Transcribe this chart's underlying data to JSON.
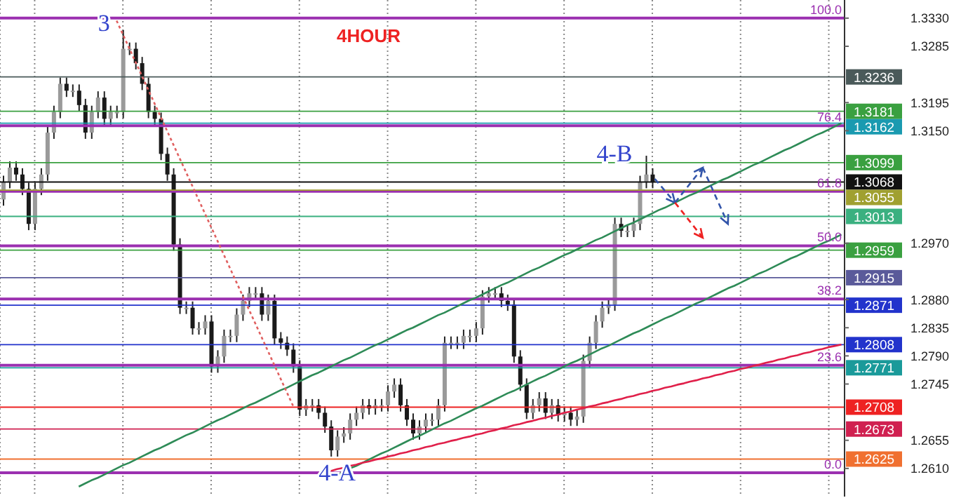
{
  "chart_data": {
    "type": "candlestick",
    "title": "4HOUR",
    "categories": [
      null,
      null,
      null,
      null,
      null,
      null,
      null,
      null,
      null,
      null,
      null,
      null,
      null,
      null,
      null,
      null,
      null,
      null,
      null,
      null,
      null,
      null,
      null,
      null,
      null,
      null,
      null,
      null,
      null,
      null,
      null,
      null,
      null,
      null,
      null,
      null,
      null,
      null,
      null,
      null,
      null,
      null,
      null,
      null,
      null,
      null,
      null,
      null,
      null,
      null,
      null,
      null,
      null,
      null,
      null,
      null,
      null,
      null,
      null,
      null,
      null,
      null,
      null,
      null,
      null,
      null,
      null,
      null,
      null,
      null,
      null,
      null,
      null,
      null,
      null,
      null,
      null,
      null,
      null,
      null,
      null,
      null,
      null,
      null,
      null,
      null,
      null,
      null,
      null,
      null,
      null,
      null,
      null,
      null,
      null,
      null,
      null,
      null,
      null,
      null,
      null,
      null,
      null,
      null,
      null,
      null,
      null,
      null,
      null,
      null,
      null,
      null,
      null,
      null,
      null,
      null,
      null,
      null,
      null,
      null,
      null,
      null,
      null,
      null,
      null,
      null,
      null,
      null,
      null,
      null,
      null,
      null,
      null,
      null
    ],
    "ohlc": [
      [
        1.304,
        1.3078,
        1.303,
        1.3068
      ],
      [
        1.3068,
        1.3101,
        1.3058,
        1.3091
      ],
      [
        1.3091,
        1.3101,
        1.307,
        1.308
      ],
      [
        1.308,
        1.309,
        1.3047,
        1.3057
      ],
      [
        1.3057,
        1.3067,
        1.2991,
        1.3001
      ],
      [
        1.3001,
        1.3067,
        1.2991,
        1.3057
      ],
      [
        1.3057,
        1.309,
        1.3047,
        1.308
      ],
      [
        1.308,
        1.3157,
        1.307,
        1.3147
      ],
      [
        1.3147,
        1.319,
        1.3137,
        1.318
      ],
      [
        1.318,
        1.3235,
        1.317,
        1.3225
      ],
      [
        1.3225,
        1.3235,
        1.3204,
        1.3214
      ],
      [
        1.3214,
        1.3224,
        1.3204,
        1.3214
      ],
      [
        1.3214,
        1.3224,
        1.3181,
        1.3191
      ],
      [
        1.3191,
        1.3201,
        1.3137,
        1.3147
      ],
      [
        1.3147,
        1.319,
        1.3137,
        1.318
      ],
      [
        1.318,
        1.3213,
        1.317,
        1.3203
      ],
      [
        1.3203,
        1.3213,
        1.3159,
        1.3169
      ],
      [
        1.3169,
        1.319,
        1.3159,
        1.318
      ],
      [
        1.318,
        1.319,
        1.317,
        1.318
      ],
      [
        1.318,
        1.3311,
        1.317,
        1.3281
      ],
      [
        1.3281,
        1.3291,
        1.3271,
        1.3281
      ],
      [
        1.3281,
        1.3291,
        1.3248,
        1.3258
      ],
      [
        1.3258,
        1.3268,
        1.3215,
        1.3225
      ],
      [
        1.3225,
        1.3235,
        1.317,
        1.318
      ],
      [
        1.318,
        1.319,
        1.3159,
        1.3169
      ],
      [
        1.3169,
        1.3179,
        1.3103,
        1.3113
      ],
      [
        1.3113,
        1.3123,
        1.307,
        1.308
      ],
      [
        1.308,
        1.309,
        1.2958,
        1.2968
      ],
      [
        1.2968,
        1.2978,
        1.2857,
        1.2867
      ],
      [
        1.2867,
        1.2877,
        1.2857,
        1.2867
      ],
      [
        1.2867,
        1.2877,
        1.2824,
        1.2834
      ],
      [
        1.2834,
        1.2844,
        1.2824,
        1.2834
      ],
      [
        1.2834,
        1.2855,
        1.2824,
        1.2845
      ],
      [
        1.2845,
        1.2855,
        1.2763,
        1.2773
      ],
      [
        1.2773,
        1.2799,
        1.2763,
        1.2789
      ],
      [
        1.2789,
        1.2832,
        1.2779,
        1.2822
      ],
      [
        1.2822,
        1.2832,
        1.2812,
        1.2822
      ],
      [
        1.2822,
        1.2866,
        1.2812,
        1.2856
      ],
      [
        1.2856,
        1.2888,
        1.2846,
        1.2878
      ],
      [
        1.2878,
        1.29,
        1.2868,
        1.289
      ],
      [
        1.289,
        1.29,
        1.288,
        1.289
      ],
      [
        1.289,
        1.29,
        1.2846,
        1.2856
      ],
      [
        1.2856,
        1.2888,
        1.2846,
        1.2878
      ],
      [
        1.2878,
        1.2888,
        1.2808,
        1.2818
      ],
      [
        1.2818,
        1.2828,
        1.2801,
        1.2811
      ],
      [
        1.2811,
        1.2821,
        1.279,
        1.28
      ],
      [
        1.28,
        1.281,
        1.2763,
        1.2773
      ],
      [
        1.2773,
        1.2783,
        1.2694,
        1.2704
      ],
      [
        1.2704,
        1.2721,
        1.2694,
        1.2711
      ],
      [
        1.2711,
        1.2721,
        1.2701,
        1.2711
      ],
      [
        1.2711,
        1.2721,
        1.2689,
        1.2699
      ],
      [
        1.2699,
        1.2709,
        1.2667,
        1.2677
      ],
      [
        1.2677,
        1.2687,
        1.2629,
        1.2639
      ],
      [
        1.2639,
        1.2671,
        1.2629,
        1.2661
      ],
      [
        1.2661,
        1.2676,
        1.2651,
        1.2666
      ],
      [
        1.2666,
        1.2698,
        1.2656,
        1.2688
      ],
      [
        1.2688,
        1.2709,
        1.2678,
        1.2699
      ],
      [
        1.2699,
        1.2721,
        1.2689,
        1.2711
      ],
      [
        1.2711,
        1.2721,
        1.2696,
        1.2706
      ],
      [
        1.2706,
        1.2721,
        1.2696,
        1.2711
      ],
      [
        1.2711,
        1.2721,
        1.2701,
        1.2711
      ],
      [
        1.2711,
        1.2743,
        1.2701,
        1.2733
      ],
      [
        1.2733,
        1.2754,
        1.2723,
        1.2744
      ],
      [
        1.2744,
        1.2754,
        1.2701,
        1.2711
      ],
      [
        1.2711,
        1.2721,
        1.2678,
        1.2688
      ],
      [
        1.2688,
        1.2698,
        1.2656,
        1.2666
      ],
      [
        1.2666,
        1.2687,
        1.2656,
        1.2677
      ],
      [
        1.2677,
        1.2698,
        1.2667,
        1.2688
      ],
      [
        1.2688,
        1.2698,
        1.2678,
        1.2688
      ],
      [
        1.2688,
        1.2721,
        1.2678,
        1.2711
      ],
      [
        1.2711,
        1.2821,
        1.2701,
        1.2811
      ],
      [
        1.2811,
        1.2821,
        1.2801,
        1.2811
      ],
      [
        1.2811,
        1.2821,
        1.2801,
        1.2811
      ],
      [
        1.2811,
        1.2832,
        1.2801,
        1.2822
      ],
      [
        1.2822,
        1.2832,
        1.2812,
        1.2822
      ],
      [
        1.2822,
        1.2844,
        1.2812,
        1.2834
      ],
      [
        1.2834,
        1.2895,
        1.2824,
        1.2885
      ],
      [
        1.2885,
        1.29,
        1.2875,
        1.289
      ],
      [
        1.289,
        1.29,
        1.288,
        1.289
      ],
      [
        1.289,
        1.29,
        1.2868,
        1.2878
      ],
      [
        1.2878,
        1.2888,
        1.2862,
        1.2872
      ],
      [
        1.2872,
        1.2882,
        1.2779,
        1.2789
      ],
      [
        1.2789,
        1.2799,
        1.2734,
        1.2744
      ],
      [
        1.2744,
        1.2754,
        1.2689,
        1.2699
      ],
      [
        1.2699,
        1.2721,
        1.2689,
        1.2711
      ],
      [
        1.2711,
        1.2732,
        1.2701,
        1.2722
      ],
      [
        1.2722,
        1.2732,
        1.2689,
        1.2699
      ],
      [
        1.2699,
        1.2721,
        1.2689,
        1.2711
      ],
      [
        1.2711,
        1.2721,
        1.2685,
        1.2695
      ],
      [
        1.2695,
        1.2709,
        1.2685,
        1.2699
      ],
      [
        1.2699,
        1.2709,
        1.2678,
        1.2688
      ],
      [
        1.2688,
        1.2703,
        1.2678,
        1.2693
      ],
      [
        1.2693,
        1.2792,
        1.2683,
        1.2782
      ],
      [
        1.2782,
        1.2821,
        1.2772,
        1.2811
      ],
      [
        1.2811,
        1.2855,
        1.2801,
        1.2845
      ],
      [
        1.2845,
        1.2877,
        1.2835,
        1.2867
      ],
      [
        1.2867,
        1.2882,
        1.2857,
        1.2872
      ],
      [
        1.2872,
        1.3011,
        1.2862,
        1.3001
      ],
      [
        1.3001,
        1.3011,
        1.298,
        1.299
      ],
      [
        1.299,
        1.3,
        1.298,
        1.299
      ],
      [
        1.299,
        1.3011,
        1.298,
        1.3001
      ],
      [
        1.3001,
        1.3078,
        1.2991,
        1.3068
      ],
      [
        1.3068,
        1.311,
        1.3058,
        1.308
      ],
      [
        1.308,
        1.309,
        1.3058,
        1.3068
      ],
      null,
      null,
      null,
      null,
      null,
      null,
      null,
      null,
      null,
      null,
      null,
      null,
      null,
      null,
      null,
      null,
      null,
      null,
      null,
      null,
      null,
      null,
      null,
      null,
      null,
      null,
      null,
      null,
      null,
      null
    ],
    "series": [
      {
        "type": "line",
        "color": "#2e8b57",
        "values": [
          null,
          null,
          null,
          null,
          null,
          null,
          null,
          null,
          null,
          null,
          null,
          null,
          1.2581,
          1.2586,
          1.2591,
          1.2595,
          1.26,
          1.2605,
          1.261,
          1.2615,
          1.2619,
          1.2624,
          1.2629,
          1.2634,
          1.2639,
          1.2643,
          1.2648,
          1.2653,
          1.2658,
          1.2663,
          1.2667,
          1.2672,
          1.2677,
          1.2682,
          1.2687,
          1.2691,
          1.2696,
          1.2701,
          1.2706,
          1.2711,
          1.2715,
          1.272,
          1.2725,
          1.273,
          1.2735,
          1.2739,
          1.2744,
          1.2749,
          1.2754,
          1.2759,
          1.2763,
          1.2768,
          1.2773,
          1.2778,
          1.2783,
          1.2787,
          1.2792,
          1.2797,
          1.2802,
          1.2807,
          1.2811,
          1.2816,
          1.2821,
          1.2826,
          1.2831,
          1.2835,
          1.284,
          1.2845,
          1.285,
          1.2855,
          1.2859,
          1.2864,
          1.2869,
          1.2874,
          1.2879,
          1.2883,
          1.2888,
          1.2893,
          1.2898,
          1.2903,
          1.2907,
          1.2912,
          1.2917,
          1.2922,
          1.2927,
          1.2931,
          1.2936,
          1.2941,
          1.2946,
          1.2951,
          1.2955,
          1.296,
          1.2965,
          1.297,
          1.2975,
          1.2979,
          1.2984,
          1.2989,
          1.2994,
          1.2999,
          1.3003,
          1.3008,
          1.3013,
          1.3018,
          1.3023,
          1.3027,
          1.3032,
          1.3037,
          1.3042,
          1.3047,
          1.3051,
          1.3056,
          1.3061,
          1.3066,
          1.3071,
          1.3075,
          1.308,
          1.3085,
          1.309,
          1.3095,
          1.3099,
          1.3104,
          1.3109,
          1.3114,
          1.3119,
          1.3123,
          1.3128,
          1.3133,
          1.3138,
          1.3143,
          1.3147,
          1.3152,
          1.3157,
          1.3162
        ]
      },
      {
        "type": "line",
        "color": "#2e8b57",
        "values": [
          null,
          null,
          null,
          null,
          null,
          null,
          null,
          null,
          null,
          null,
          null,
          null,
          null,
          null,
          null,
          null,
          null,
          null,
          null,
          null,
          null,
          null,
          null,
          null,
          null,
          null,
          null,
          null,
          null,
          null,
          null,
          null,
          null,
          null,
          null,
          null,
          null,
          null,
          null,
          null,
          null,
          null,
          null,
          null,
          null,
          null,
          null,
          null,
          null,
          null,
          null,
          null,
          null,
          1.26,
          1.2605,
          1.261,
          1.2614,
          1.2619,
          1.2624,
          1.2629,
          1.2634,
          1.2638,
          1.2643,
          1.2648,
          1.2653,
          1.2658,
          1.2662,
          1.2667,
          1.2672,
          1.2677,
          1.2682,
          1.2686,
          1.2691,
          1.2696,
          1.2701,
          1.2706,
          1.271,
          1.2715,
          1.272,
          1.2725,
          1.273,
          1.2734,
          1.2739,
          1.2744,
          1.2749,
          1.2754,
          1.2758,
          1.2763,
          1.2768,
          1.2773,
          1.2778,
          1.2782,
          1.2787,
          1.2792,
          1.2797,
          1.2802,
          1.2806,
          1.2811,
          1.2816,
          1.2821,
          1.2826,
          1.283,
          1.2835,
          1.284,
          1.2845,
          1.285,
          1.2854,
          1.2859,
          1.2864,
          1.2869,
          1.2874,
          1.2878,
          1.2883,
          1.2888,
          1.2893,
          1.2898,
          1.2902,
          1.2907,
          1.2912,
          1.2917,
          1.2922,
          1.2926,
          1.2931,
          1.2936,
          1.2941,
          1.2946,
          1.295,
          1.2955,
          1.296,
          1.2965,
          1.297,
          1.2974,
          1.2979,
          1.2984
        ]
      },
      {
        "type": "line",
        "color": "#e0204a",
        "values": [
          null,
          null,
          null,
          null,
          null,
          null,
          null,
          null,
          null,
          null,
          null,
          null,
          null,
          null,
          null,
          null,
          null,
          null,
          null,
          null,
          null,
          null,
          null,
          null,
          null,
          null,
          null,
          null,
          null,
          null,
          null,
          null,
          null,
          null,
          null,
          null,
          null,
          null,
          null,
          null,
          null,
          null,
          null,
          null,
          null,
          null,
          null,
          null,
          null,
          null,
          null,
          null,
          1.2606,
          1.2609,
          1.2611,
          1.2614,
          1.2616,
          1.2619,
          1.2621,
          1.2624,
          1.2626,
          1.2629,
          1.2631,
          1.2634,
          1.2636,
          1.2639,
          1.2641,
          1.2644,
          1.2646,
          1.2649,
          1.2651,
          1.2654,
          1.2656,
          1.2659,
          1.2661,
          1.2664,
          1.2666,
          1.2669,
          1.2671,
          1.2674,
          1.2676,
          1.2679,
          1.2681,
          1.2684,
          1.2686,
          1.2689,
          1.2691,
          1.2694,
          1.2696,
          1.2699,
          1.2701,
          1.2704,
          1.2706,
          1.2709,
          1.2711,
          1.2714,
          1.2716,
          1.2719,
          1.2721,
          1.2724,
          1.2726,
          1.2729,
          1.2731,
          1.2734,
          1.2736,
          1.2739,
          1.2741,
          1.2744,
          1.2746,
          1.2749,
          1.2751,
          1.2754,
          1.2756,
          1.2759,
          1.2761,
          1.2764,
          1.2766,
          1.2769,
          1.2771,
          1.2774,
          1.2776,
          1.2779,
          1.2781,
          1.2784,
          1.2786,
          1.2789,
          1.2791,
          1.2794,
          1.2796,
          1.2799,
          1.2801,
          1.2804,
          1.2806,
          1.2808
        ]
      },
      {
        "type": "line",
        "color": "#e06060",
        "line_style": "dotted",
        "values": [
          null,
          null,
          null,
          null,
          null,
          null,
          null,
          null,
          null,
          null,
          null,
          null,
          null,
          null,
          null,
          null,
          null,
          null,
          1.3326,
          1.3304,
          1.3282,
          1.326,
          1.3238,
          1.3216,
          1.3194,
          1.3172,
          1.315,
          1.3128,
          1.3106,
          1.3084,
          1.3062,
          1.304,
          1.3018,
          1.2996,
          1.2974,
          1.2952,
          1.293,
          1.2908,
          1.2886,
          1.2864,
          1.2842,
          1.282,
          1.2798,
          1.2776,
          1.2754,
          1.2732,
          1.271,
          null,
          null,
          null,
          null,
          null,
          null,
          null,
          null,
          null,
          null,
          null,
          null,
          null,
          null,
          null,
          null,
          null,
          null,
          null,
          null,
          null,
          null,
          null,
          null,
          null,
          null,
          null,
          null,
          null,
          null,
          null,
          null,
          null,
          null,
          null,
          null,
          null,
          null,
          null,
          null,
          null,
          null,
          null,
          null,
          null,
          null,
          null,
          null,
          null,
          null,
          null,
          null,
          null,
          null,
          null,
          null,
          null,
          null,
          null,
          null,
          null,
          null,
          null,
          null,
          null,
          null,
          null,
          null,
          null,
          null,
          null,
          null,
          null,
          null,
          null,
          null,
          null,
          null,
          null,
          null,
          null,
          null,
          null,
          null,
          null,
          null,
          null
        ]
      }
    ],
    "ylim": [
      1.2565,
      1.3359
    ],
    "yticks": [
      {
        "value": 1.333,
        "label": "1.3330"
      },
      {
        "value": 1.3285,
        "label": "1.3285"
      },
      {
        "value": 1.3195,
        "label": "1.3195"
      },
      {
        "value": 1.315,
        "label": "1.3150"
      },
      {
        "value": 1.297,
        "label": "1.2970"
      },
      {
        "value": 1.288,
        "label": "1.2880"
      },
      {
        "value": 1.2835,
        "label": "1.2835"
      },
      {
        "value": 1.279,
        "label": "1.2790"
      },
      {
        "value": 1.2745,
        "label": "1.2745"
      },
      {
        "value": 1.2655,
        "label": "1.2655"
      },
      {
        "value": 1.261,
        "label": "1.2610"
      }
    ],
    "tick_labels": "y",
    "grid": "x",
    "legend": false,
    "marker": "none",
    "ref_lines": [
      {
        "axis": "y",
        "value": 1.333,
        "color": "#9b30b0"
      },
      {
        "axis": "y",
        "value": 1.3158,
        "color": "#9b30b0"
      },
      {
        "axis": "y",
        "value": 1.3053,
        "color": "#9b30b0"
      },
      {
        "axis": "y",
        "value": 1.2966,
        "color": "#9b30b0"
      },
      {
        "axis": "y",
        "value": 1.2881,
        "color": "#9b30b0"
      },
      {
        "axis": "y",
        "value": 1.2775,
        "color": "#9b30b0"
      },
      {
        "axis": "y",
        "value": 1.2603,
        "color": "#9b30b0"
      },
      {
        "axis": "y",
        "value": 1.3236,
        "label": "1.3236",
        "color": "#4a5a5a"
      },
      {
        "axis": "y",
        "value": 1.3181,
        "label": "1.3181",
        "color": "#3aa040"
      },
      {
        "axis": "y",
        "value": 1.3162,
        "label": "1.3162",
        "color": "#1a9ab0"
      },
      {
        "axis": "y",
        "value": 1.3099,
        "label": "1.3099",
        "color": "#3aa040"
      },
      {
        "axis": "y",
        "value": 1.3068,
        "label": "1.3068",
        "color": "#111111"
      },
      {
        "axis": "y",
        "value": 1.3055,
        "label": "1.3055",
        "color": "#a0a030"
      },
      {
        "axis": "y",
        "value": 1.3013,
        "label": "1.3013",
        "color": "#3ab080"
      },
      {
        "axis": "y",
        "value": 1.2959,
        "label": "1.2959",
        "color": "#3aa040"
      },
      {
        "axis": "y",
        "value": 1.2915,
        "label": "1.2915",
        "color": "#5a5a9a"
      },
      {
        "axis": "y",
        "value": 1.2871,
        "label": "1.2871",
        "color": "#2233cc"
      },
      {
        "axis": "y",
        "value": 1.2808,
        "label": "1.2808",
        "color": "#2233cc"
      },
      {
        "axis": "y",
        "value": 1.2771,
        "label": "1.2771",
        "color": "#1a9a9a"
      },
      {
        "axis": "y",
        "value": 1.2708,
        "label": "1.2708",
        "color": "#ee2222"
      },
      {
        "axis": "y",
        "value": 1.2673,
        "label": "1.2673",
        "color": "#d02050"
      },
      {
        "axis": "y",
        "value": 1.2625,
        "label": "1.2625",
        "color": "#f07030"
      }
    ],
    "annotations": [
      "3",
      {
        "text": "4-A",
        "y": 1.2629
      },
      {
        "text": "4-B",
        "y": 1.311
      },
      {
        "text": "100.0",
        "y": 1.333
      },
      {
        "text": "76.4",
        "y": 1.3158
      },
      {
        "text": "61.8",
        "y": 1.3053
      },
      {
        "text": "50.0",
        "y": 1.2966
      },
      {
        "text": "38.2",
        "y": 1.2881
      },
      {
        "text": "23.6",
        "y": 1.2775
      },
      {
        "text": "0.0",
        "y": 1.2603
      }
    ]
  }
}
